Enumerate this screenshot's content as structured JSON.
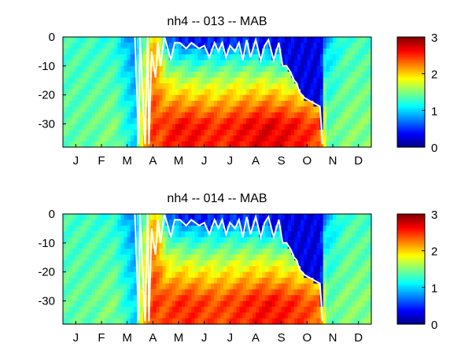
{
  "chart_data": [
    {
      "type": "heatmap",
      "title": "nh4 -- 013 -- MAB",
      "xlabel": "",
      "ylabel": "",
      "x_tick_labels": [
        "J",
        "F",
        "M",
        "A",
        "M",
        "J",
        "J",
        "A",
        "S",
        "O",
        "N",
        "D"
      ],
      "y_tick_labels": [
        "0",
        "-10",
        "-20",
        "-30"
      ],
      "y_ticks": [
        0,
        -10,
        -20,
        -30
      ],
      "ylim": [
        -38,
        0
      ],
      "xlim_months": [
        0,
        12
      ],
      "colorbar": {
        "ticks": [
          0,
          1,
          2,
          3
        ],
        "labels": [
          "0",
          "1",
          "2",
          "3"
        ],
        "range": [
          0,
          3
        ],
        "colormap": "jet"
      },
      "mixed_layer_depth": {
        "month": [
          2.8,
          2.95,
          3.0,
          3.2,
          3.3,
          3.35,
          3.45,
          3.6,
          3.7,
          3.8,
          3.95,
          4.05,
          4.2,
          4.35,
          4.55,
          4.8,
          5.0,
          5.3,
          5.5,
          5.7,
          5.9,
          6.05,
          6.2,
          6.35,
          6.5,
          6.7,
          6.85,
          7.0,
          7.15,
          7.3,
          7.5,
          7.7,
          7.85,
          8.0,
          8.2,
          8.4,
          8.55,
          8.7,
          8.85,
          9.0,
          9.1,
          9.2,
          9.3,
          9.4,
          9.6,
          9.8,
          10.0,
          10.05,
          10.1
        ],
        "depth": [
          0,
          -37,
          0,
          -37,
          0,
          -37,
          -5,
          -14,
          -2,
          -10,
          0,
          -3,
          -8,
          -2,
          -2,
          -4,
          -2,
          -4,
          -3,
          -7,
          -2,
          -5,
          -2,
          -7,
          -3,
          -5,
          -2,
          -8,
          -1,
          -7,
          -1,
          -8,
          -3,
          -1,
          -8,
          -2,
          -10,
          -10,
          -12,
          -15,
          -16,
          -19,
          -20,
          -21,
          -22,
          -23,
          -24,
          -30,
          -37
        ]
      },
      "seasonal_profile": {
        "month": [
          0,
          1,
          2,
          2.8,
          3.0,
          3.3,
          3.5,
          3.8,
          4.0,
          4.5,
          5.0,
          6.0,
          7.0,
          8.0,
          9.0,
          9.5,
          10.0,
          10.3,
          11.0,
          12.0
        ],
        "surface": [
          1.3,
          1.3,
          1.2,
          0.7,
          1.2,
          1.6,
          2.0,
          1.6,
          0.8,
          0.5,
          0.4,
          0.5,
          0.5,
          0.4,
          0.3,
          0.3,
          0.3,
          0.9,
          1.3,
          1.3
        ],
        "bottom": [
          1.4,
          1.4,
          1.5,
          1.0,
          1.7,
          2.2,
          2.5,
          2.4,
          2.5,
          2.6,
          2.6,
          2.5,
          2.6,
          2.7,
          2.6,
          2.5,
          2.4,
          1.4,
          1.5,
          1.5
        ]
      }
    },
    {
      "type": "heatmap",
      "title": "nh4 -- 014 -- MAB",
      "xlabel": "",
      "ylabel": "",
      "x_tick_labels": [
        "J",
        "F",
        "M",
        "A",
        "M",
        "J",
        "J",
        "A",
        "S",
        "O",
        "N",
        "D"
      ],
      "y_tick_labels": [
        "0",
        "-10",
        "-20",
        "-30"
      ],
      "y_ticks": [
        0,
        -10,
        -20,
        -30
      ],
      "ylim": [
        -38,
        0
      ],
      "xlim_months": [
        0,
        12
      ],
      "colorbar": {
        "ticks": [
          0,
          1,
          2,
          3
        ],
        "labels": [
          "0",
          "1",
          "2",
          "3"
        ],
        "range": [
          0,
          3
        ],
        "colormap": "jet"
      },
      "mixed_layer_depth": {
        "month": [
          2.8,
          2.95,
          3.0,
          3.2,
          3.3,
          3.35,
          3.45,
          3.6,
          3.7,
          3.8,
          3.95,
          4.05,
          4.2,
          4.35,
          4.55,
          4.8,
          5.0,
          5.3,
          5.5,
          5.7,
          5.9,
          6.05,
          6.2,
          6.35,
          6.5,
          6.7,
          6.85,
          7.0,
          7.15,
          7.3,
          7.5,
          7.7,
          7.85,
          8.0,
          8.2,
          8.4,
          8.55,
          8.7,
          8.85,
          9.0,
          9.1,
          9.2,
          9.3,
          9.4,
          9.6,
          9.8,
          10.0,
          10.05,
          10.1
        ],
        "depth": [
          0,
          -37,
          0,
          -37,
          0,
          -37,
          -5,
          -14,
          -2,
          -10,
          0,
          -3,
          -8,
          -2,
          -2,
          -4,
          -2,
          -4,
          -3,
          -7,
          -2,
          -5,
          -2,
          -7,
          -3,
          -5,
          -2,
          -8,
          -1,
          -7,
          -1,
          -8,
          -3,
          -1,
          -8,
          -2,
          -10,
          -10,
          -12,
          -15,
          -16,
          -19,
          -20,
          -21,
          -22,
          -23,
          -24,
          -30,
          -37
        ]
      },
      "seasonal_profile": {
        "month": [
          0,
          1,
          2,
          2.8,
          3.0,
          3.3,
          3.5,
          3.8,
          4.0,
          4.5,
          5.0,
          6.0,
          7.0,
          8.0,
          9.0,
          9.5,
          10.0,
          10.3,
          11.0,
          12.0
        ],
        "surface": [
          1.3,
          1.3,
          1.2,
          0.7,
          1.2,
          1.6,
          2.0,
          1.6,
          0.8,
          0.5,
          0.4,
          0.5,
          0.5,
          0.4,
          0.3,
          0.3,
          0.3,
          0.9,
          1.3,
          1.3
        ],
        "bottom": [
          1.4,
          1.4,
          1.5,
          1.0,
          1.7,
          2.2,
          2.5,
          2.4,
          2.4,
          2.5,
          2.5,
          2.4,
          2.5,
          2.6,
          2.5,
          2.4,
          2.3,
          1.4,
          1.5,
          1.5
        ]
      }
    }
  ]
}
